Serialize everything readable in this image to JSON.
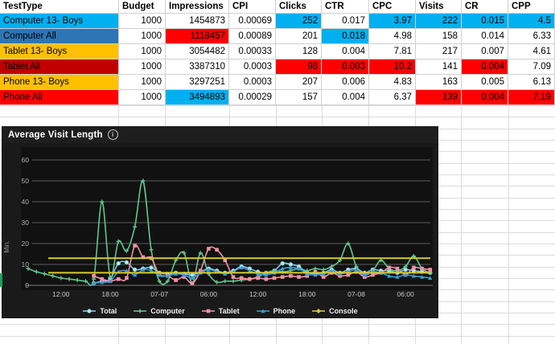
{
  "colors": {
    "lightblue": "#00B0F0",
    "blue": "#2E75B6",
    "gold": "#FFC000",
    "darkred": "#C00000",
    "red": "#FF0000"
  },
  "table": {
    "columns": [
      "TestType",
      "Budget",
      "Impressions",
      "CPI",
      "Clicks",
      "CTR",
      "CPC",
      "Visits",
      "CR",
      "CPP"
    ],
    "rows": [
      {
        "cells": [
          {
            "v": "Computer 13- Boys",
            "bg": "lightblue"
          },
          {
            "v": "1000"
          },
          {
            "v": "1454873"
          },
          {
            "v": "0.00069"
          },
          {
            "v": "252",
            "bg": "lightblue"
          },
          {
            "v": "0.017"
          },
          {
            "v": "3.97",
            "bg": "lightblue"
          },
          {
            "v": "222",
            "bg": "lightblue"
          },
          {
            "v": "0.015",
            "bg": "lightblue"
          },
          {
            "v": "4.5",
            "bg": "lightblue"
          }
        ]
      },
      {
        "cells": [
          {
            "v": "Computer All",
            "bg": "blue"
          },
          {
            "v": "1000"
          },
          {
            "v": "1118457",
            "bg": "red"
          },
          {
            "v": "0.00089"
          },
          {
            "v": "201"
          },
          {
            "v": "0.018",
            "bg": "lightblue"
          },
          {
            "v": "4.98"
          },
          {
            "v": "158"
          },
          {
            "v": "0.014"
          },
          {
            "v": "6.33"
          }
        ]
      },
      {
        "cells": [
          {
            "v": "Tablet 13- Boys",
            "bg": "gold"
          },
          {
            "v": "1000"
          },
          {
            "v": "3054482"
          },
          {
            "v": "0.00033"
          },
          {
            "v": "128"
          },
          {
            "v": "0.004"
          },
          {
            "v": "7.81"
          },
          {
            "v": "217"
          },
          {
            "v": "0.007"
          },
          {
            "v": "4.61"
          }
        ]
      },
      {
        "cells": [
          {
            "v": "Tablet All",
            "bg": "darkred"
          },
          {
            "v": "1000"
          },
          {
            "v": "3387310"
          },
          {
            "v": "0.0003"
          },
          {
            "v": "98",
            "bg": "red"
          },
          {
            "v": "0.003",
            "bg": "red"
          },
          {
            "v": "10.2",
            "bg": "red"
          },
          {
            "v": "141"
          },
          {
            "v": "0.004",
            "bg": "red"
          },
          {
            "v": "7.09"
          }
        ]
      },
      {
        "cells": [
          {
            "v": "Phone 13- Boys",
            "bg": "gold"
          },
          {
            "v": "1000"
          },
          {
            "v": "3297251"
          },
          {
            "v": "0.0003"
          },
          {
            "v": "207"
          },
          {
            "v": "0.006"
          },
          {
            "v": "4.83"
          },
          {
            "v": "163"
          },
          {
            "v": "0.005"
          },
          {
            "v": "6.13"
          }
        ]
      },
      {
        "cells": [
          {
            "v": "Phone All",
            "bg": "red"
          },
          {
            "v": "1000"
          },
          {
            "v": "3494893",
            "bg": "lightblue"
          },
          {
            "v": "0.00029"
          },
          {
            "v": "157"
          },
          {
            "v": "0.004"
          },
          {
            "v": "6.37"
          },
          {
            "v": "139",
            "bg": "red"
          },
          {
            "v": "0.004",
            "bg": "red"
          },
          {
            "v": "7.19",
            "bg": "red"
          }
        ]
      }
    ]
  },
  "chart": {
    "title": "Average Visit Length",
    "info_icon": "i"
  },
  "chart_data": {
    "type": "line",
    "title": "Average Visit Length",
    "xlabel": "",
    "ylabel": "Min.",
    "ylim": [
      0,
      60
    ],
    "yticks": [
      0,
      10,
      20,
      30,
      40,
      50,
      60
    ],
    "grid": true,
    "legend_position": "bottom",
    "x_ticks": [
      {
        "label": "12:00",
        "index": 4
      },
      {
        "label": "18:00",
        "index": 10
      },
      {
        "label": "07-07",
        "index": 16
      },
      {
        "label": "06:00",
        "index": 22
      },
      {
        "label": "12:00",
        "index": 28
      },
      {
        "label": "18:00",
        "index": 34
      },
      {
        "label": "07-08",
        "index": 40
      },
      {
        "label": "06:00",
        "index": 46
      }
    ],
    "series": [
      {
        "name": "Total",
        "color": "#7fcdea",
        "marker": "circle",
        "start": 8,
        "values": [
          1,
          2,
          3,
          10.5,
          11,
          7.5,
          8,
          8.5,
          6,
          5.5,
          6,
          5.5,
          5,
          6.5,
          8,
          7,
          6,
          7,
          9,
          8,
          6.5,
          6,
          7,
          10.5,
          10,
          9,
          6,
          5.5,
          6,
          7.5,
          6,
          7.5,
          8,
          6,
          7.5,
          7,
          7,
          6,
          7.5,
          7,
          6.5,
          6
        ]
      },
      {
        "name": "Computer",
        "color": "#63c58f",
        "marker": "plus",
        "start": 0,
        "values": [
          8,
          6.5,
          5.5,
          4.5,
          3.5,
          3,
          2.5,
          2,
          3,
          40,
          4,
          21,
          16.5,
          28,
          50,
          17,
          2,
          2,
          12,
          15.5,
          1,
          15.5,
          5.5,
          1.5,
          2,
          2,
          2.5,
          3,
          4,
          6,
          7,
          6.5,
          7,
          8,
          7,
          8,
          7.5,
          9,
          12,
          20,
          9,
          5,
          7,
          12,
          8,
          7,
          9,
          14,
          8,
          6
        ]
      },
      {
        "name": "Tablet",
        "color": "#f191a5",
        "marker": "square",
        "start": 8,
        "values": [
          4.5,
          3,
          2,
          3,
          3.5,
          19,
          13.5,
          13,
          5,
          4.5,
          2.5,
          4,
          1,
          7,
          17.5,
          17,
          12,
          4,
          3.5,
          3,
          3.5,
          3,
          3.5,
          4,
          4.5,
          4,
          4.5,
          6.5,
          4,
          6,
          4.5,
          5,
          6.5,
          4,
          5,
          6,
          8.5,
          8,
          5,
          8.5,
          8,
          7.5
        ]
      },
      {
        "name": "Phone",
        "color": "#3d9ad1",
        "marker": "triangle",
        "start": 8,
        "values": [
          1,
          1.5,
          2,
          6.5,
          7,
          5,
          7.5,
          7,
          5,
          4.5,
          5.5,
          5,
          3.5,
          6,
          7.5,
          6.5,
          5.5,
          6.5,
          8.5,
          7,
          5.5,
          5,
          6,
          8,
          8.5,
          8,
          5.5,
          5,
          5.5,
          7,
          5.5,
          6.5,
          7.5,
          5,
          6.5,
          6,
          4.5,
          4,
          5,
          4.5,
          4,
          3.5
        ]
      },
      {
        "name": "Console",
        "color": "#d6ca2e",
        "marker": "diamond",
        "start": 3,
        "lines": [
          13,
          6
        ]
      }
    ]
  }
}
